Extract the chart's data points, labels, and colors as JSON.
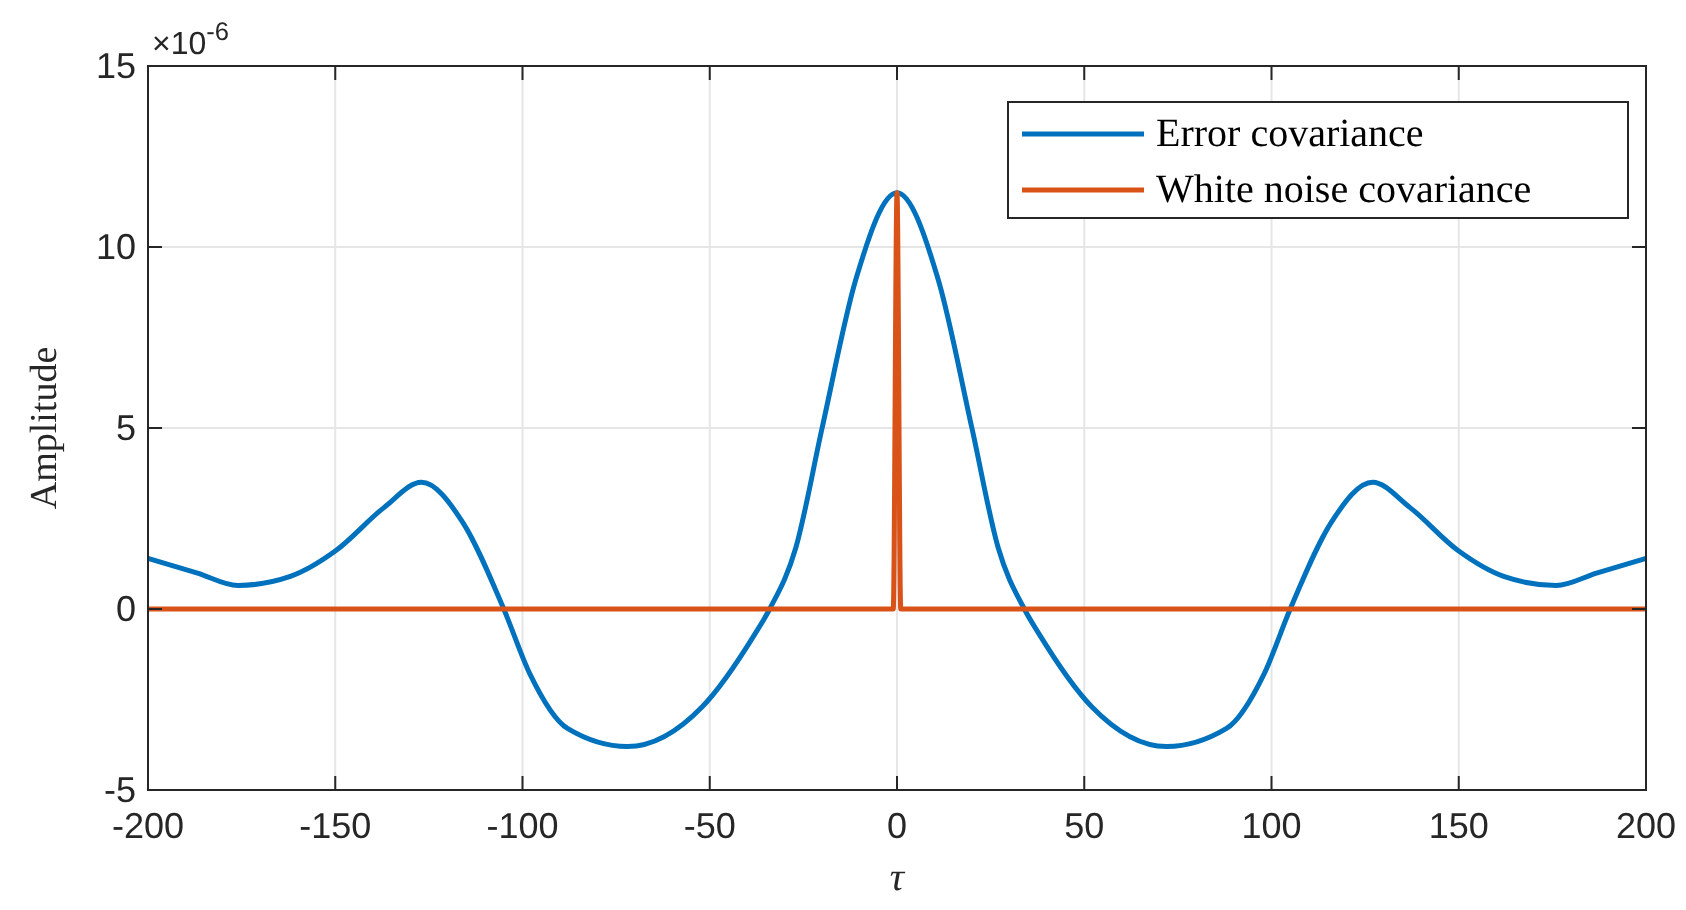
{
  "chart_data": {
    "type": "line",
    "xlabel": "τ",
    "ylabel": "Amplitude",
    "annotations": [
      "×10$^{-6}$"
    ],
    "xlim": [
      -200,
      200
    ],
    "xticks": [
      -200,
      -150,
      -100,
      -50,
      0,
      50,
      100,
      150,
      200
    ],
    "ylim": [
      -5,
      15
    ],
    "yticks": [
      -5,
      0,
      5,
      10,
      15
    ],
    "grid": true,
    "legend": "top right",
    "line_style": "solid",
    "series": [
      {
        "name": "Error covariance",
        "color": "#0072bd",
        "x": [
          -200,
          -187,
          -176,
          -162,
          -150,
          -137,
          -127,
          -116,
          -105,
          -98,
          -88,
          -72,
          -52,
          -38,
          -34,
          -27,
          -20,
          -11,
          0,
          11,
          20,
          27,
          34,
          38,
          52,
          72,
          88,
          98,
          105,
          116,
          127,
          137,
          150,
          162,
          176,
          187,
          200
        ],
        "values": [
          1.4,
          1.0,
          0.65,
          0.9,
          1.6,
          2.8,
          3.5,
          2.4,
          0,
          -1.8,
          -3.3,
          -3.8,
          -2.7,
          -0.7,
          0,
          1.7,
          5.0,
          9.1,
          11.5,
          9.1,
          5.0,
          1.7,
          0,
          -0.7,
          -2.7,
          -3.8,
          -3.3,
          -1.8,
          0,
          2.4,
          3.5,
          2.8,
          1.6,
          0.9,
          0.65,
          1.0,
          1.4
        ]
      },
      {
        "name": "White noise covariance",
        "color": "#d95319",
        "x": [
          -200,
          -1,
          0,
          1,
          200
        ],
        "values": [
          0,
          0,
          11.5,
          0,
          0
        ]
      }
    ]
  }
}
